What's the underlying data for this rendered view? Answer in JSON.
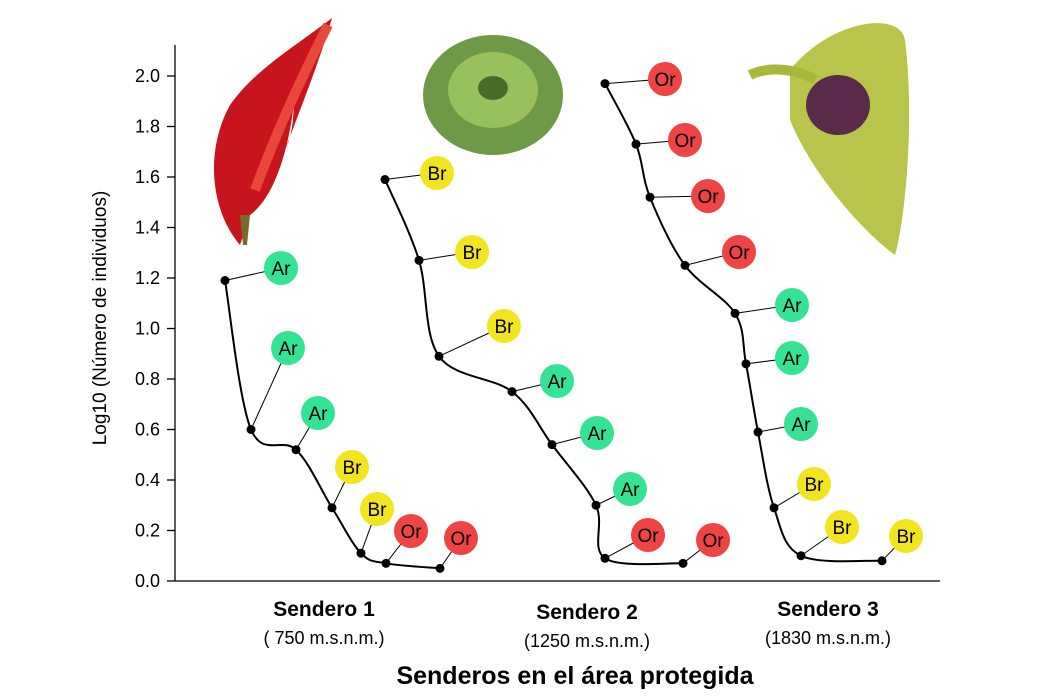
{
  "chart_data": {
    "type": "line",
    "title": "",
    "xlabel": "Senderos en el área protegida",
    "ylabel": "Log10 (Número de individuos)",
    "ylim": [
      0,
      2.1
    ],
    "yticks": [
      "0.0",
      "0.2",
      "0.4",
      "0.6",
      "0.8",
      "1.0",
      "1.2",
      "1.4",
      "1.6",
      "1.8",
      "2.0"
    ],
    "legend_codes": {
      "Ar": "#35e394",
      "Br": "#f2e41f",
      "Or": "#ee4444"
    },
    "series": [
      {
        "name": "Sendero 1",
        "altitude": "( 750 m.s.n.m.)",
        "values": [
          1.19,
          0.6,
          0.52,
          0.29,
          0.11,
          0.07,
          0.05
        ],
        "labels": [
          "Ar",
          "Ar",
          "Ar",
          "Br",
          "Br",
          "Or",
          "Or"
        ]
      },
      {
        "name": "Sendero 2",
        "altitude": "(1250 m.s.n.m.)",
        "values": [
          1.59,
          1.27,
          0.89,
          0.75,
          0.54,
          0.3,
          0.09,
          0.07
        ],
        "labels": [
          "Br",
          "Br",
          "Br",
          "Ar",
          "Ar",
          "Ar",
          "Or",
          "Or"
        ]
      },
      {
        "name": "Sendero 3",
        "altitude": "(1830 m.s.n.m.)",
        "values": [
          1.97,
          1.73,
          1.52,
          1.25,
          1.06,
          0.86,
          0.59,
          0.29,
          0.1,
          0.08
        ],
        "labels": [
          "Or",
          "Or",
          "Or",
          "Or",
          "Ar",
          "Ar",
          "Ar",
          "Br",
          "Br",
          "Br"
        ]
      }
    ]
  }
}
